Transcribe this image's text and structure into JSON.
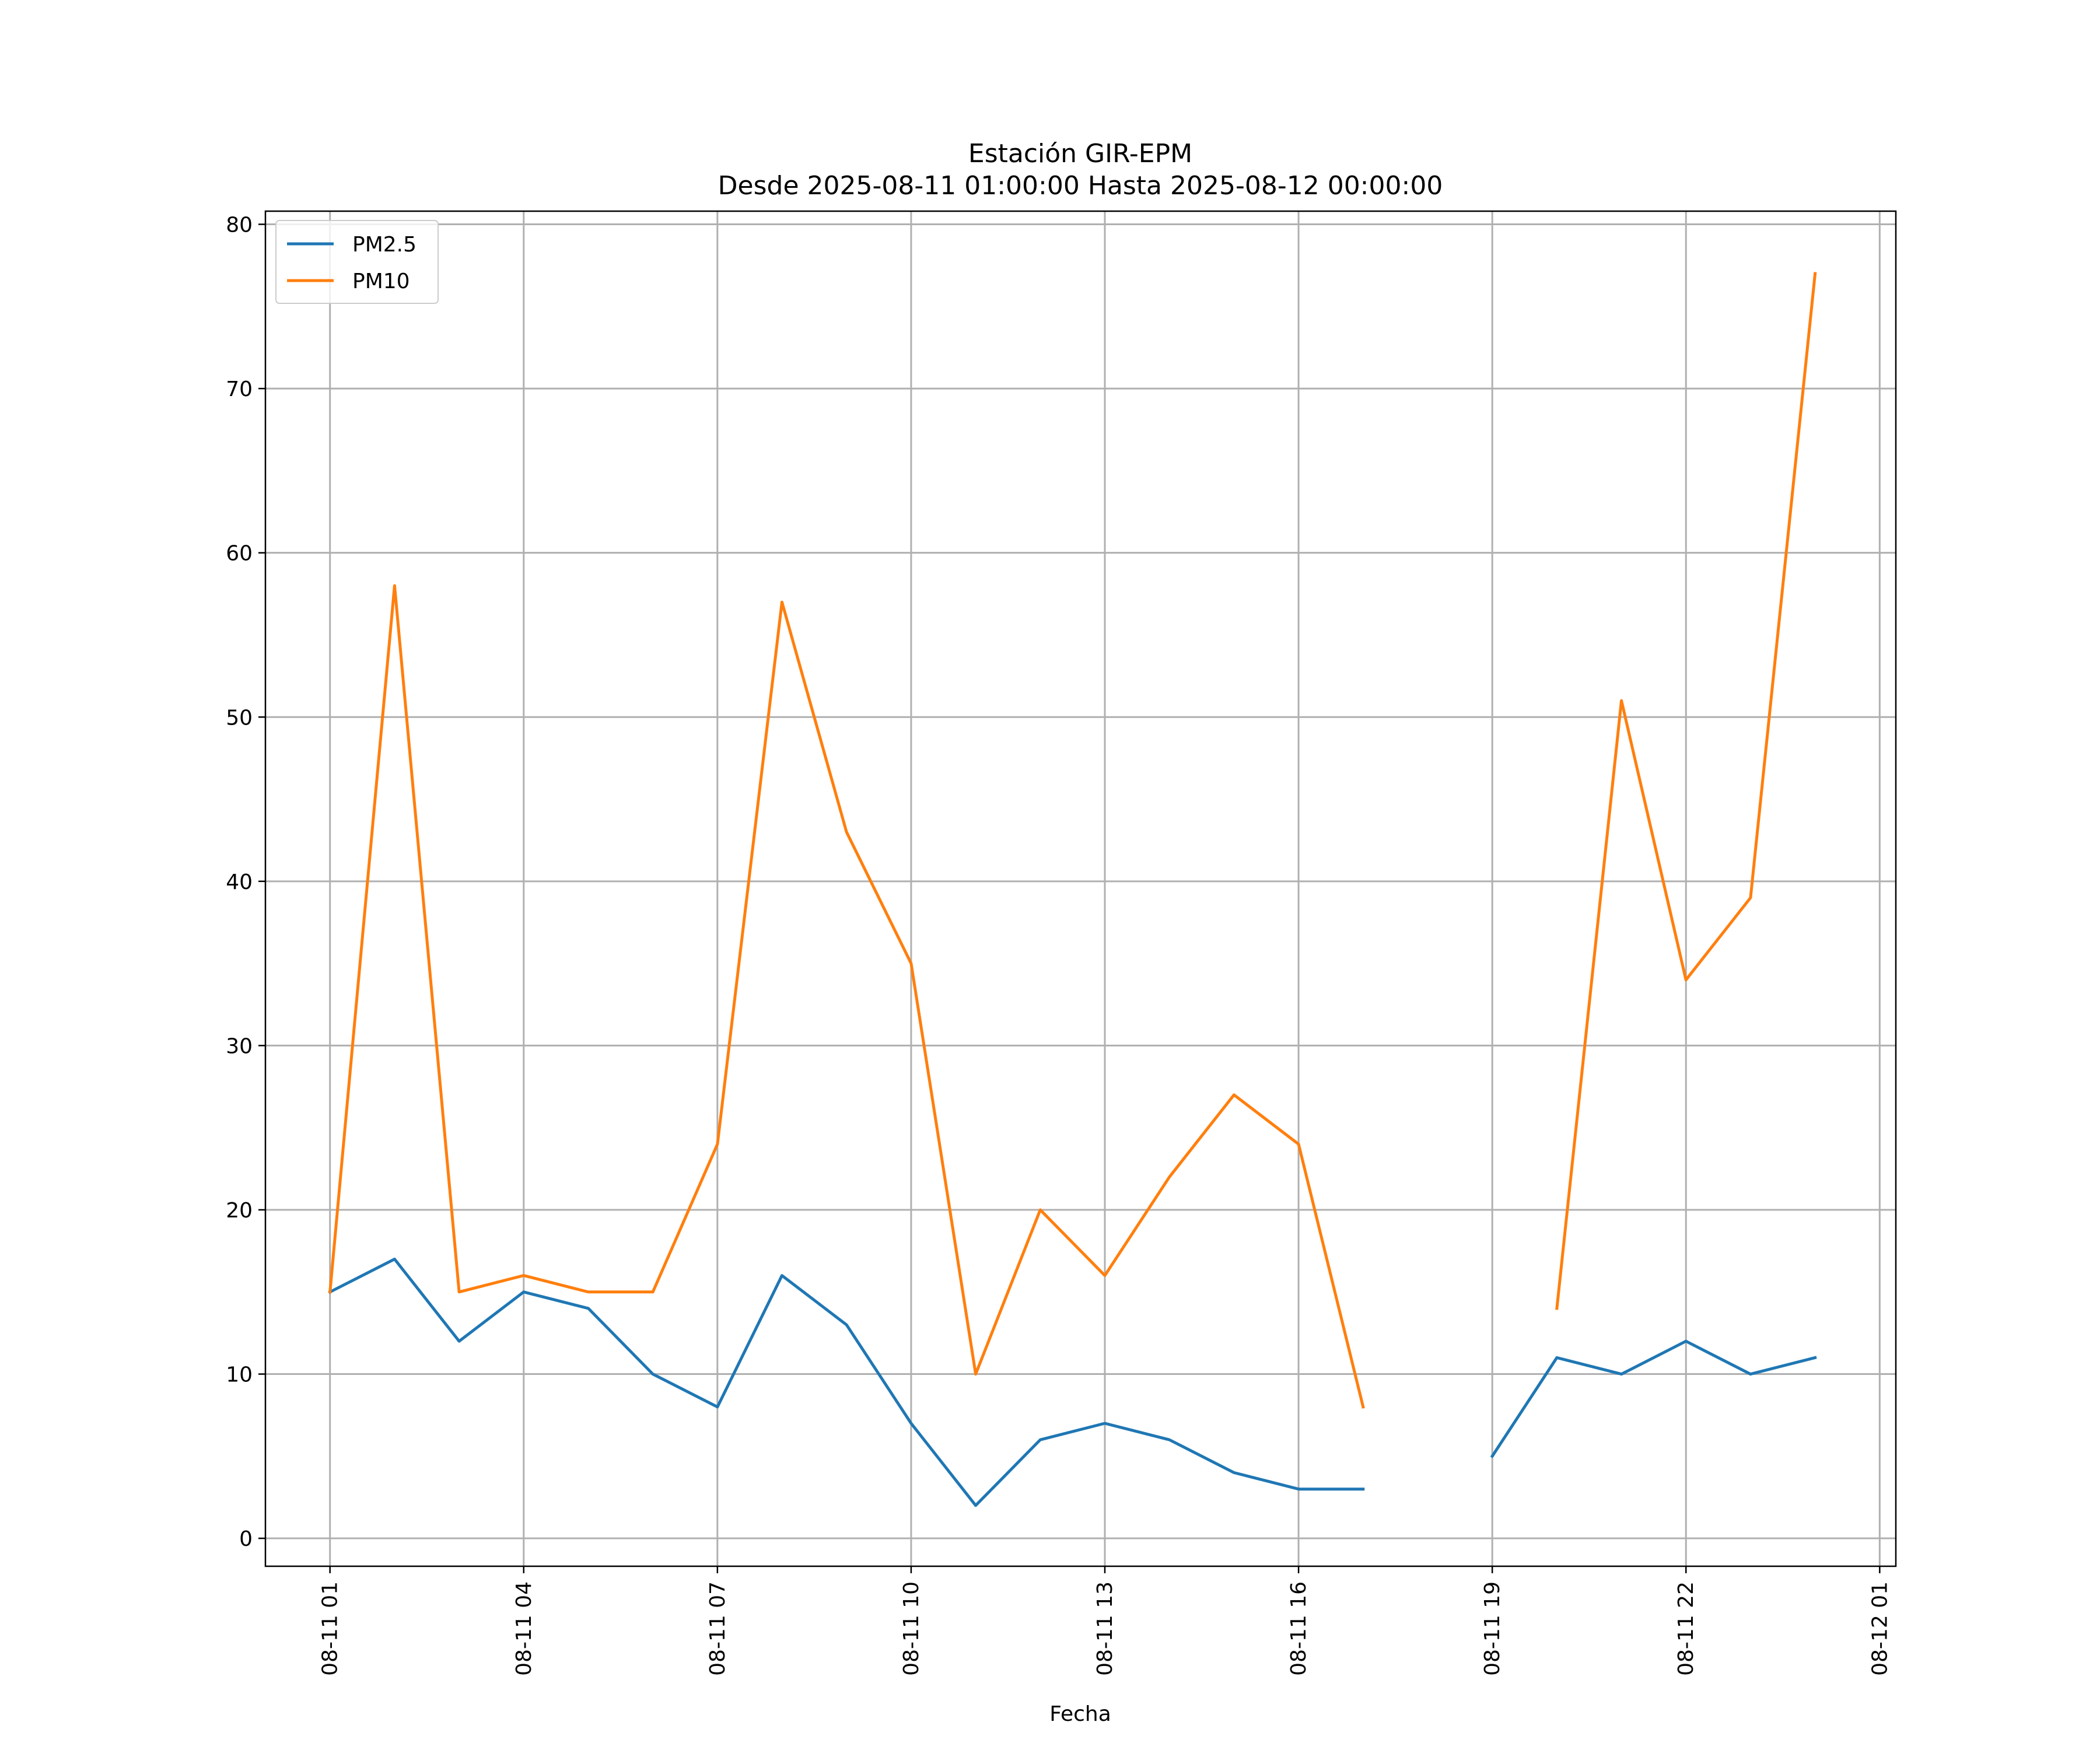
{
  "chart_data": {
    "type": "line",
    "title": "Estación GIR-EPM",
    "subtitle": "Desde 2025-08-11 01:00:00 Hasta 2025-08-12 00:00:00",
    "xlabel": "Fecha",
    "ylabel": "",
    "x_range": [
      "2025-08-11 00:00",
      "2025-08-12 01:15"
    ],
    "ylim": [
      -1.7,
      80.8
    ],
    "x_tick_values": [
      "2025-08-11 01:00",
      "2025-08-11 04:00",
      "2025-08-11 07:00",
      "2025-08-11 10:00",
      "2025-08-11 13:00",
      "2025-08-11 16:00",
      "2025-08-11 19:00",
      "2025-08-11 22:00",
      "2025-08-12 01:00"
    ],
    "x_tick_labels": [
      "08-11 01",
      "08-11 04",
      "08-11 07",
      "08-11 10",
      "08-11 13",
      "08-11 16",
      "08-11 19",
      "08-11 22",
      "08-12 01"
    ],
    "y_ticks": [
      0,
      10,
      20,
      30,
      40,
      50,
      60,
      70,
      80
    ],
    "grid": true,
    "legend_position": "top-left",
    "x": [
      "2025-08-11 01:00",
      "2025-08-11 02:00",
      "2025-08-11 03:00",
      "2025-08-11 04:00",
      "2025-08-11 05:00",
      "2025-08-11 06:00",
      "2025-08-11 07:00",
      "2025-08-11 08:00",
      "2025-08-11 09:00",
      "2025-08-11 10:00",
      "2025-08-11 11:00",
      "2025-08-11 12:00",
      "2025-08-11 13:00",
      "2025-08-11 14:00",
      "2025-08-11 15:00",
      "2025-08-11 16:00",
      "2025-08-11 17:00",
      "2025-08-11 18:00",
      "2025-08-11 19:00",
      "2025-08-11 20:00",
      "2025-08-11 21:00",
      "2025-08-11 22:00",
      "2025-08-11 23:00",
      "2025-08-12 00:00"
    ],
    "series": [
      {
        "name": "PM2.5",
        "color": "#1f77b4",
        "values": [
          15,
          17,
          12,
          15,
          14,
          10,
          8,
          16,
          13,
          7,
          2,
          6,
          7,
          6,
          4,
          3,
          3,
          null,
          5,
          11,
          10,
          12,
          10,
          11
        ]
      },
      {
        "name": "PM10",
        "color": "#ff7f0e",
        "values": [
          15,
          58,
          15,
          16,
          15,
          15,
          24,
          57,
          43,
          35,
          10,
          20,
          16,
          22,
          27,
          24,
          8,
          null,
          null,
          14,
          51,
          34,
          39,
          77
        ]
      }
    ]
  }
}
